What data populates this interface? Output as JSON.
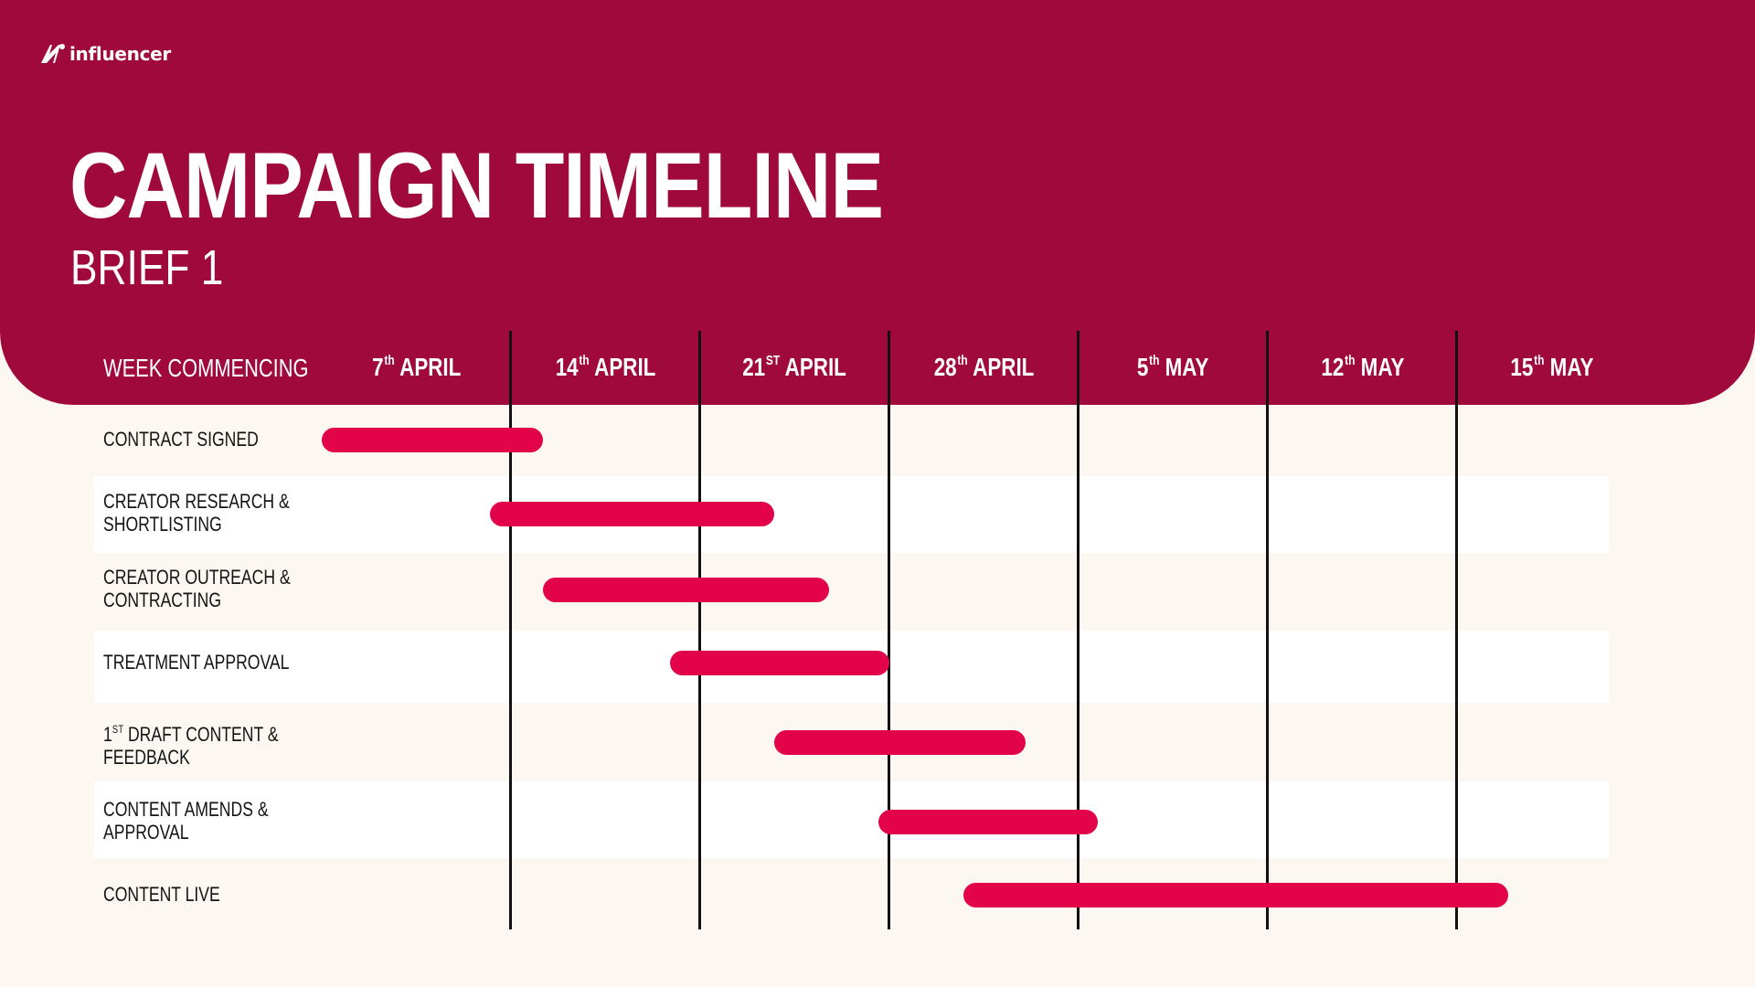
{
  "brand": {
    "name": "influencer",
    "logo_icon": "influencer-logo-mark"
  },
  "title": "CAMPAIGN TIMELINE",
  "subtitle": "BRIEF 1",
  "week_label": "WEEK COMMENCING",
  "colors": {
    "header_bg": "#a0093b",
    "page_bg": "#fcf8f1",
    "bar": "#e2034a",
    "stripe": "#ffffff",
    "divider": "#111111"
  },
  "chart_data": {
    "type": "gantt",
    "title": "CAMPAIGN TIMELINE",
    "subtitle": "BRIEF 1",
    "axis_label": "WEEK COMMENCING",
    "weeks": [
      {
        "day": "7",
        "suffix": "th",
        "month": "APRIL"
      },
      {
        "day": "14",
        "suffix": "th",
        "month": "APRIL"
      },
      {
        "day": "21",
        "suffix": "ST",
        "month": "APRIL"
      },
      {
        "day": "28",
        "suffix": "th",
        "month": "APRIL"
      },
      {
        "day": "5",
        "suffix": "th",
        "month": "MAY"
      },
      {
        "day": "12",
        "suffix": "th",
        "month": "MAY"
      },
      {
        "day": "15",
        "suffix": "th",
        "month": "MAY"
      }
    ],
    "tasks": [
      {
        "lines": [
          "CONTRACT SIGNED"
        ],
        "start": 0.0,
        "end": 1.17
      },
      {
        "lines": [
          "CREATOR RESEARCH &",
          "SHORTLISTING"
        ],
        "start": 0.89,
        "end": 2.39
      },
      {
        "lines": [
          "CREATOR OUTREACH &",
          "CONTRACTING"
        ],
        "start": 1.17,
        "end": 2.68
      },
      {
        "lines": [
          "TREATMENT APPROVAL"
        ],
        "start": 1.84,
        "end": 3.0
      },
      {
        "lines": [
          "DRAFT CONTENT &",
          "FEEDBACK"
        ],
        "prefix_num": "1",
        "prefix_sup": "ST",
        "start": 2.39,
        "end": 3.72
      },
      {
        "lines": [
          "CONTENT AMENDS &",
          "APPROVAL"
        ],
        "start": 2.94,
        "end": 4.1
      },
      {
        "lines": [
          "CONTENT LIVE"
        ],
        "start": 3.39,
        "end": 6.27
      }
    ]
  }
}
